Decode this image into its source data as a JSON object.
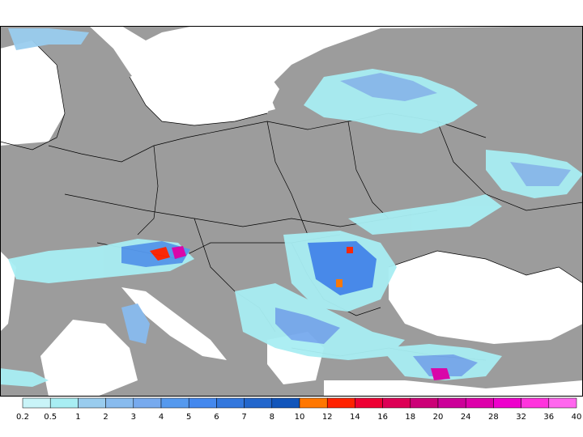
{
  "legend": {
    "ticks": [
      "0.2",
      "0.5",
      "1",
      "2",
      "3",
      "4",
      "5",
      "6",
      "7",
      "8",
      "10",
      "12",
      "14",
      "16",
      "18",
      "20",
      "24",
      "28",
      "32",
      "36",
      "40"
    ],
    "colors": [
      "#c9f4f8",
      "#a8eef3",
      "#99ccee",
      "#88bbee",
      "#77aaee",
      "#5599ee",
      "#4488ee",
      "#3377dd",
      "#2266cc",
      "#1155bb",
      "#ff7700",
      "#ff2200",
      "#ee0033",
      "#dd0055",
      "#cc0077",
      "#cc0099",
      "#dd00aa",
      "#ee00cc",
      "#ff33dd",
      "#ff66ee"
    ]
  },
  "map_colors": {
    "land": "#9c9c9c",
    "sea": "#ffffff",
    "border": "#000000"
  }
}
